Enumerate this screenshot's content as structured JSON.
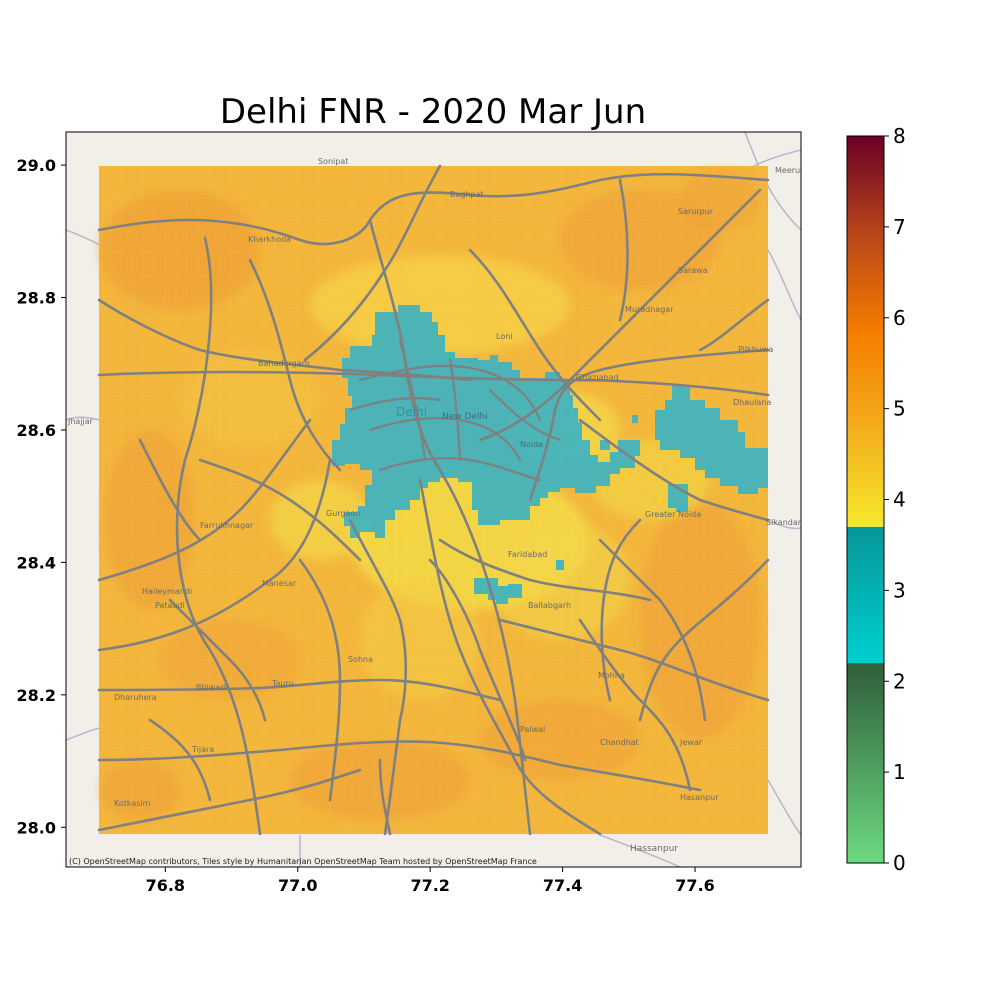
{
  "title": "Delhi FNR - 2020 Mar Jun",
  "map": {
    "xlim": [
      76.65,
      77.76
    ],
    "ylim": [
      27.94,
      29.05
    ],
    "data_extent": {
      "lon": [
        76.7,
        77.71
      ],
      "lat": [
        27.99,
        29.0
      ]
    },
    "x_ticks": [
      {
        "value": 76.8,
        "label": "76.8"
      },
      {
        "value": 77.0,
        "label": "77.0"
      },
      {
        "value": 77.2,
        "label": "77.2"
      },
      {
        "value": 77.4,
        "label": "77.4"
      },
      {
        "value": 77.6,
        "label": "77.6"
      }
    ],
    "y_ticks": [
      {
        "value": 28.0,
        "label": "28.0"
      },
      {
        "value": 28.2,
        "label": "28.2"
      },
      {
        "value": 28.4,
        "label": "28.4"
      },
      {
        "value": 28.6,
        "label": "28.6"
      },
      {
        "value": 28.8,
        "label": "28.8"
      },
      {
        "value": 29.0,
        "label": "29.0"
      }
    ],
    "attribution": "(C) OpenStreetMap contributors, Tiles style by Humanitarian OpenStreetMap Team hosted by OpenStreetMap France",
    "places": [
      {
        "name": "Sonipat",
        "lon": 76.99,
        "lat": 28.99
      },
      {
        "name": "Baghpat",
        "lon": 77.22,
        "lat": 28.95
      },
      {
        "name": "Meerut",
        "lon": 77.71,
        "lat": 28.99
      },
      {
        "name": "Kharkhoda",
        "lon": 76.9,
        "lat": 28.88
      },
      {
        "name": "Sarurpur",
        "lon": 77.58,
        "lat": 28.93
      },
      {
        "name": "Sarawa",
        "lon": 77.53,
        "lat": 28.84
      },
      {
        "name": "Muradnagar",
        "lon": 77.5,
        "lat": 28.78
      },
      {
        "name": "Loni",
        "lon": 77.29,
        "lat": 28.75
      },
      {
        "name": "Bahadurgarh",
        "lon": 76.93,
        "lat": 28.69
      },
      {
        "name": "Ghaziabad",
        "lon": 77.43,
        "lat": 28.67
      },
      {
        "name": "Pilkhuwa",
        "lon": 77.65,
        "lat": 28.71
      },
      {
        "name": "Delhi",
        "lon": 77.12,
        "lat": 28.63
      },
      {
        "name": "New Delhi",
        "lon": 77.21,
        "lat": 28.62
      },
      {
        "name": "Jhajjar",
        "lon": 76.65,
        "lat": 28.61
      },
      {
        "name": "Dhaulana",
        "lon": 77.68,
        "lat": 28.63
      },
      {
        "name": "Noida",
        "lon": 77.33,
        "lat": 28.57
      },
      {
        "name": "Greater Noida",
        "lon": 77.51,
        "lat": 28.48
      },
      {
        "name": "Sikandarabad",
        "lon": 77.71,
        "lat": 28.45
      },
      {
        "name": "Gurgaon",
        "lon": 77.03,
        "lat": 28.47
      },
      {
        "name": "Faridabad",
        "lon": 77.31,
        "lat": 28.41
      },
      {
        "name": "Farrukhnagar",
        "lon": 76.82,
        "lat": 28.45
      },
      {
        "name": "Manesar",
        "lon": 76.94,
        "lat": 28.36
      },
      {
        "name": "Haileymandi",
        "lon": 76.76,
        "lat": 28.35
      },
      {
        "name": "Pataudi",
        "lon": 76.78,
        "lat": 28.33
      },
      {
        "name": "Ballabgarh",
        "lon": 77.32,
        "lat": 28.34
      },
      {
        "name": "Sohna",
        "lon": 77.07,
        "lat": 28.25
      },
      {
        "name": "Mohna",
        "lon": 77.49,
        "lat": 28.24
      },
      {
        "name": "Bhiwadi",
        "lon": 76.86,
        "lat": 28.21
      },
      {
        "name": "Tauru",
        "lon": 76.94,
        "lat": 28.21
      },
      {
        "name": "Dharuhera",
        "lon": 76.75,
        "lat": 28.2
      },
      {
        "name": "Palwal",
        "lon": 77.33,
        "lat": 28.14
      },
      {
        "name": "Chandhat",
        "lon": 77.49,
        "lat": 28.1
      },
      {
        "name": "Jewar",
        "lon": 77.57,
        "lat": 28.13
      },
      {
        "name": "Tijara",
        "lon": 76.85,
        "lat": 28.1
      },
      {
        "name": "Hasanpur",
        "lon": 77.58,
        "lat": 28.07
      },
      {
        "name": "Kotkasim",
        "lon": 76.73,
        "lat": 28.03
      },
      {
        "name": "Hassanpur",
        "lon": 77.53,
        "lat": 27.98
      }
    ]
  },
  "colorbar": {
    "vmin": 0,
    "vmax": 8,
    "ticks": [
      {
        "value": 0,
        "label": "0"
      },
      {
        "value": 1,
        "label": "1"
      },
      {
        "value": 2,
        "label": "2"
      },
      {
        "value": 3,
        "label": "3"
      },
      {
        "value": 4,
        "label": "4"
      },
      {
        "value": 5,
        "label": "5"
      },
      {
        "value": 6,
        "label": "6"
      },
      {
        "value": 7,
        "label": "7"
      },
      {
        "value": 8,
        "label": "8"
      }
    ],
    "segments": [
      {
        "from": 0,
        "to": 2.2,
        "colors": [
          "#6dd97f",
          "#2f5e3c"
        ]
      },
      {
        "from": 2.2,
        "to": 3.7,
        "colors": [
          "#00cfd0",
          "#069698"
        ]
      },
      {
        "from": 3.7,
        "to": 8,
        "colors": [
          "#f6e82c",
          "#f4ae1e",
          "#f57c00",
          "#b8461a",
          "#6a0024"
        ]
      }
    ]
  },
  "colors": {
    "base_field": "#f2b53a",
    "low_fnr": "#3fb3c0",
    "map_bg": "#f2efe9",
    "roads": "#808080"
  }
}
